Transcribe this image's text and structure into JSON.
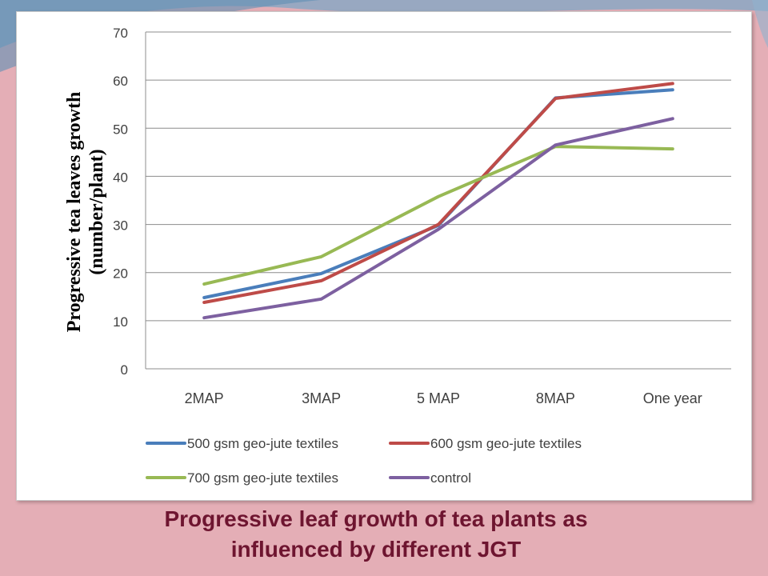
{
  "page": {
    "background": "#e4aeb6",
    "caption_line1": "Progressive leaf growth of tea plants as",
    "caption_line2": "influenced by different JGT",
    "caption_color": "#6e1530"
  },
  "chart_data": {
    "type": "line",
    "title": "",
    "xlabel": "",
    "ylabel_line1": "Progressive tea leaves growth",
    "ylabel_line2": "(number/plant)",
    "categories": [
      "2MAP",
      "3MAP",
      "5 MAP",
      "8MAP",
      "One year"
    ],
    "ylim": [
      0,
      70
    ],
    "yticks": [
      0,
      10,
      20,
      30,
      40,
      50,
      60,
      70
    ],
    "grid": true,
    "legend_position": "bottom",
    "series": [
      {
        "name": "500 gsm geo-jute textiles",
        "color": "#4a7ebb",
        "values": [
          14.8,
          19.8,
          29.8,
          56.3,
          58.0
        ]
      },
      {
        "name": "600 gsm geo-jute textiles",
        "color": "#be4b48",
        "values": [
          13.8,
          18.3,
          30.0,
          56.2,
          59.3
        ]
      },
      {
        "name": "700 gsm geo-jute textiles",
        "color": "#98b954",
        "values": [
          17.6,
          23.3,
          35.8,
          46.2,
          45.7
        ]
      },
      {
        "name": "control",
        "color": "#7d60a0",
        "values": [
          10.6,
          14.5,
          29.0,
          46.5,
          52.0
        ]
      }
    ]
  }
}
